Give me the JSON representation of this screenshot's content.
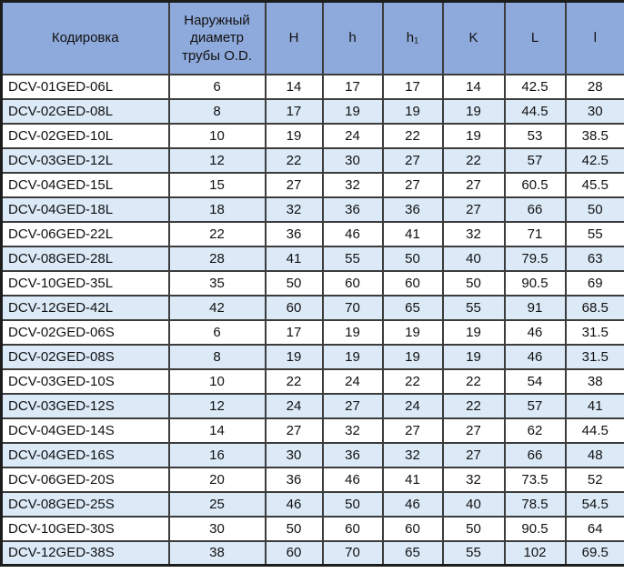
{
  "table": {
    "headers": [
      "Кодировка",
      "Наружный диаметр трубы O.D.",
      "H",
      "h",
      "h₁",
      "K",
      "L",
      "l"
    ],
    "colors": {
      "header_bg": "#8EA9DB",
      "alt_row_bg": "#DCEAF8",
      "row_bg": "#FFFFFF",
      "border": "#3C3C3C",
      "outer_border": "#1C1C1C",
      "text": "#111111"
    },
    "rows": [
      {
        "code": "DCV-01GED-06L",
        "od": "6",
        "H": "14",
        "h": "17",
        "h1": "17",
        "K": "14",
        "L": "42.5",
        "l": "28"
      },
      {
        "code": "DCV-02GED-08L",
        "od": "8",
        "H": "17",
        "h": "19",
        "h1": "19",
        "K": "19",
        "L": "44.5",
        "l": "30"
      },
      {
        "code": "DCV-02GED-10L",
        "od": "10",
        "H": "19",
        "h": "24",
        "h1": "22",
        "K": "19",
        "L": "53",
        "l": "38.5"
      },
      {
        "code": "DCV-03GED-12L",
        "od": "12",
        "H": "22",
        "h": "30",
        "h1": "27",
        "K": "22",
        "L": "57",
        "l": "42.5"
      },
      {
        "code": "DCV-04GED-15L",
        "od": "15",
        "H": "27",
        "h": "32",
        "h1": "27",
        "K": "27",
        "L": "60.5",
        "l": "45.5"
      },
      {
        "code": "DCV-04GED-18L",
        "od": "18",
        "H": "32",
        "h": "36",
        "h1": "36",
        "K": "27",
        "L": "66",
        "l": "50"
      },
      {
        "code": "DCV-06GED-22L",
        "od": "22",
        "H": "36",
        "h": "46",
        "h1": "41",
        "K": "32",
        "L": "71",
        "l": "55"
      },
      {
        "code": "DCV-08GED-28L",
        "od": "28",
        "H": "41",
        "h": "55",
        "h1": "50",
        "K": "40",
        "L": "79.5",
        "l": "63"
      },
      {
        "code": "DCV-10GED-35L",
        "od": "35",
        "H": "50",
        "h": "60",
        "h1": "60",
        "K": "50",
        "L": "90.5",
        "l": "69"
      },
      {
        "code": "DCV-12GED-42L",
        "od": "42",
        "H": "60",
        "h": "70",
        "h1": "65",
        "K": "55",
        "L": "91",
        "l": "68.5"
      },
      {
        "code": "DCV-02GED-06S",
        "od": "6",
        "H": "17",
        "h": "19",
        "h1": "19",
        "K": "19",
        "L": "46",
        "l": "31.5"
      },
      {
        "code": "DCV-02GED-08S",
        "od": "8",
        "H": "19",
        "h": "19",
        "h1": "19",
        "K": "19",
        "L": "46",
        "l": "31.5"
      },
      {
        "code": "DCV-03GED-10S",
        "od": "10",
        "H": "22",
        "h": "24",
        "h1": "22",
        "K": "22",
        "L": "54",
        "l": "38"
      },
      {
        "code": "DCV-03GED-12S",
        "od": "12",
        "H": "24",
        "h": "27",
        "h1": "24",
        "K": "22",
        "L": "57",
        "l": "41"
      },
      {
        "code": "DCV-04GED-14S",
        "od": "14",
        "H": "27",
        "h": "32",
        "h1": "27",
        "K": "27",
        "L": "62",
        "l": "44.5"
      },
      {
        "code": "DCV-04GED-16S",
        "od": "16",
        "H": "30",
        "h": "36",
        "h1": "32",
        "K": "27",
        "L": "66",
        "l": "48"
      },
      {
        "code": "DCV-06GED-20S",
        "od": "20",
        "H": "36",
        "h": "46",
        "h1": "41",
        "K": "32",
        "L": "73.5",
        "l": "52"
      },
      {
        "code": "DCV-08GED-25S",
        "od": "25",
        "H": "46",
        "h": "50",
        "h1": "46",
        "K": "40",
        "L": "78.5",
        "l": "54.5"
      },
      {
        "code": "DCV-10GED-30S",
        "od": "30",
        "H": "50",
        "h": "60",
        "h1": "60",
        "K": "50",
        "L": "90.5",
        "l": "64"
      },
      {
        "code": "DCV-12GED-38S",
        "od": "38",
        "H": "60",
        "h": "70",
        "h1": "65",
        "K": "55",
        "L": "102",
        "l": "69.5"
      }
    ]
  }
}
